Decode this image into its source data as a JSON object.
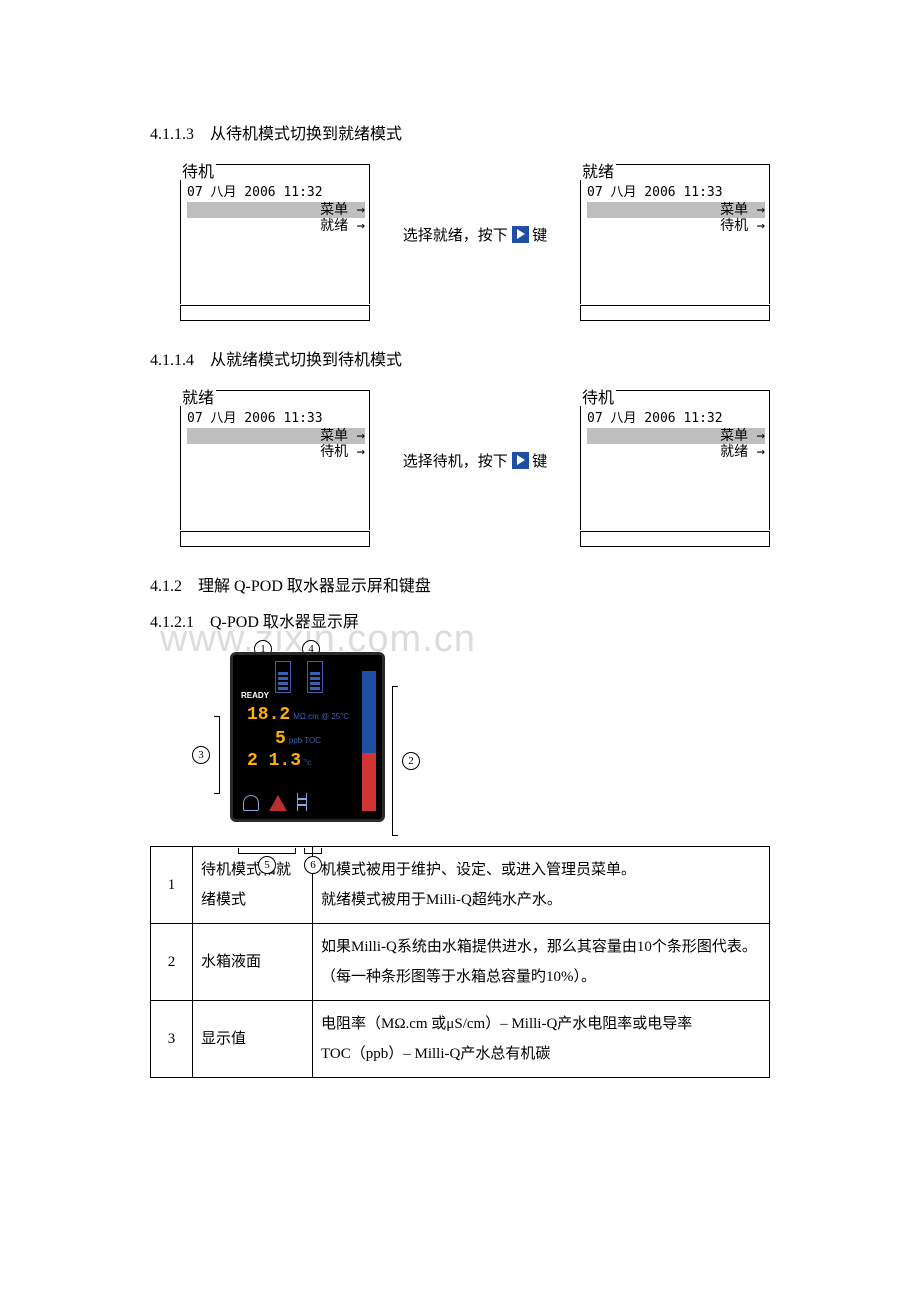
{
  "watermark": "www.zixin.com.cn",
  "sections": {
    "s1": {
      "num": "4.1.1.3",
      "title": "从待机模式切换到就绪模式"
    },
    "s2": {
      "num": "4.1.1.4",
      "title": "从就绪模式切换到待机模式"
    },
    "s3": {
      "num": "4.1.2",
      "title": "理解 Q-POD 取水器显示屏和键盘"
    },
    "s4": {
      "num": "4.1.2.1",
      "title": "Q-POD  取水器显示屏"
    }
  },
  "lcd": {
    "standby_title": "待机",
    "ready_title": "就绪",
    "date1": "07 八月  2006 11:32",
    "date2": "07 八月  2006 11:33",
    "menu": "菜单 →",
    "opt_ready": "就绪 →",
    "opt_standby": "待机 →"
  },
  "arrow": {
    "t1a": "选择就绪，按下",
    "t1b": "键",
    "t2a": "选择待机，按下",
    "t2b": "键"
  },
  "qpod": {
    "ready": "READY",
    "v1": "18.2",
    "u1": "MΩ.cm @ 25°C",
    "v2": "5",
    "u2": "ppb TOC",
    "v3": "2 1.3",
    "u3": "°c",
    "callouts": {
      "c1": "1",
      "c2": "2",
      "c3": "3",
      "c4": "4",
      "c5": "5",
      "c6": "6"
    }
  },
  "table": {
    "rows": [
      {
        "n": "1",
        "label": "待机模式和就绪模式",
        "desc": "机模式被用于维护、设定、或进入管理员菜单。\n就绪模式被用于Milli-Q超纯水产水。"
      },
      {
        "n": "2",
        "label": "水箱液面",
        "desc": "如果Milli-Q系统由水箱提供进水，那么其容量由10个条形图代表。  （每一种条形图等于水箱总容量旳10%）。"
      },
      {
        "n": "3",
        "label": "显示值",
        "desc": "电阻率（MΩ.cm  或μS/cm）– Milli-Q产水电阻率或电导率\nTOC（ppb）– Milli-Q产水总有机碳"
      }
    ]
  }
}
